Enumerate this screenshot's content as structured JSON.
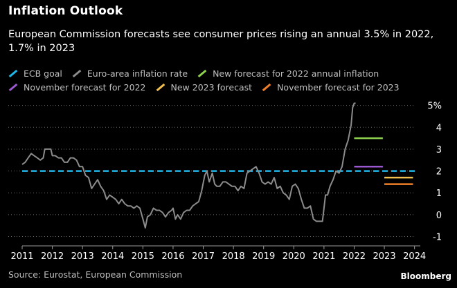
{
  "header": {
    "title": "Inflation Outlook",
    "subtitle": "European Commission forecasts see consumer prices rising an annual 3.5% in 2022, 1.7% in 2023"
  },
  "legend": [
    {
      "label": "ECB goal",
      "color": "#1fb6e8"
    },
    {
      "label": "Euro-area inflation rate",
      "color": "#8c8c8c"
    },
    {
      "label": "New forecast for 2022 annual inflation",
      "color": "#8ed14f"
    },
    {
      "label": "November forecast for 2022",
      "color": "#9b59d0"
    },
    {
      "label": "New 2023 forecast",
      "color": "#f2c14e"
    },
    {
      "label": "November forecast for 2023",
      "color": "#f07f2a"
    }
  ],
  "footer": {
    "source": "Source: Eurostat, European Commission",
    "brand": "Bloomberg"
  },
  "chart_data": {
    "type": "line",
    "x_ticks": [
      "2011",
      "2012",
      "2013",
      "2014",
      "2015",
      "2016",
      "2017",
      "2018",
      "2019",
      "2020",
      "2021",
      "2022",
      "2023",
      "2024"
    ],
    "y_ticks": [
      "-1",
      "0",
      "1",
      "2",
      "3",
      "4",
      "5%"
    ],
    "xlim": [
      2011,
      2024.1
    ],
    "ylim": [
      -1.3,
      5.4
    ],
    "grid": "horizontal dotted",
    "series": [
      {
        "name": "Euro-area inflation rate",
        "color": "#8c8c8c",
        "points": [
          [
            2011.0,
            2.3
          ],
          [
            2011.1,
            2.4
          ],
          [
            2011.2,
            2.6
          ],
          [
            2011.3,
            2.8
          ],
          [
            2011.4,
            2.7
          ],
          [
            2011.5,
            2.6
          ],
          [
            2011.6,
            2.5
          ],
          [
            2011.7,
            2.6
          ],
          [
            2011.75,
            3.0
          ],
          [
            2011.85,
            3.0
          ],
          [
            2011.95,
            3.0
          ],
          [
            2012.0,
            2.7
          ],
          [
            2012.1,
            2.7
          ],
          [
            2012.2,
            2.6
          ],
          [
            2012.3,
            2.6
          ],
          [
            2012.4,
            2.4
          ],
          [
            2012.5,
            2.4
          ],
          [
            2012.6,
            2.6
          ],
          [
            2012.7,
            2.6
          ],
          [
            2012.8,
            2.5
          ],
          [
            2012.9,
            2.2
          ],
          [
            2013.0,
            2.2
          ],
          [
            2013.1,
            1.8
          ],
          [
            2013.2,
            1.7
          ],
          [
            2013.3,
            1.2
          ],
          [
            2013.4,
            1.4
          ],
          [
            2013.5,
            1.6
          ],
          [
            2013.6,
            1.3
          ],
          [
            2013.7,
            1.1
          ],
          [
            2013.8,
            0.7
          ],
          [
            2013.9,
            0.9
          ],
          [
            2014.0,
            0.8
          ],
          [
            2014.1,
            0.7
          ],
          [
            2014.2,
            0.5
          ],
          [
            2014.3,
            0.7
          ],
          [
            2014.4,
            0.5
          ],
          [
            2014.5,
            0.4
          ],
          [
            2014.6,
            0.4
          ],
          [
            2014.7,
            0.3
          ],
          [
            2014.8,
            0.4
          ],
          [
            2014.9,
            0.3
          ],
          [
            2015.0,
            -0.2
          ],
          [
            2015.08,
            -0.6
          ],
          [
            2015.15,
            -0.1
          ],
          [
            2015.25,
            0.0
          ],
          [
            2015.35,
            0.3
          ],
          [
            2015.45,
            0.2
          ],
          [
            2015.55,
            0.2
          ],
          [
            2015.65,
            0.1
          ],
          [
            2015.75,
            -0.1
          ],
          [
            2015.85,
            0.1
          ],
          [
            2015.95,
            0.2
          ],
          [
            2016.0,
            0.3
          ],
          [
            2016.08,
            -0.2
          ],
          [
            2016.15,
            0.0
          ],
          [
            2016.25,
            -0.2
          ],
          [
            2016.35,
            0.1
          ],
          [
            2016.45,
            0.2
          ],
          [
            2016.55,
            0.2
          ],
          [
            2016.65,
            0.4
          ],
          [
            2016.75,
            0.5
          ],
          [
            2016.85,
            0.6
          ],
          [
            2016.95,
            1.1
          ],
          [
            2017.05,
            1.8
          ],
          [
            2017.12,
            2.0
          ],
          [
            2017.2,
            1.5
          ],
          [
            2017.3,
            1.9
          ],
          [
            2017.38,
            1.4
          ],
          [
            2017.45,
            1.3
          ],
          [
            2017.55,
            1.3
          ],
          [
            2017.65,
            1.5
          ],
          [
            2017.75,
            1.5
          ],
          [
            2017.85,
            1.4
          ],
          [
            2017.95,
            1.3
          ],
          [
            2018.05,
            1.3
          ],
          [
            2018.15,
            1.1
          ],
          [
            2018.25,
            1.3
          ],
          [
            2018.35,
            1.2
          ],
          [
            2018.45,
            1.9
          ],
          [
            2018.55,
            2.0
          ],
          [
            2018.65,
            2.1
          ],
          [
            2018.75,
            2.2
          ],
          [
            2018.85,
            1.9
          ],
          [
            2018.95,
            1.5
          ],
          [
            2019.05,
            1.4
          ],
          [
            2019.15,
            1.5
          ],
          [
            2019.25,
            1.4
          ],
          [
            2019.35,
            1.7
          ],
          [
            2019.45,
            1.2
          ],
          [
            2019.55,
            1.3
          ],
          [
            2019.65,
            1.0
          ],
          [
            2019.75,
            0.9
          ],
          [
            2019.85,
            0.7
          ],
          [
            2019.95,
            1.3
          ],
          [
            2020.05,
            1.4
          ],
          [
            2020.15,
            1.2
          ],
          [
            2020.25,
            0.7
          ],
          [
            2020.35,
            0.3
          ],
          [
            2020.45,
            0.3
          ],
          [
            2020.55,
            0.4
          ],
          [
            2020.65,
            -0.2
          ],
          [
            2020.75,
            -0.3
          ],
          [
            2020.85,
            -0.3
          ],
          [
            2020.95,
            -0.3
          ],
          [
            2021.05,
            0.9
          ],
          [
            2021.12,
            0.9
          ],
          [
            2021.2,
            1.3
          ],
          [
            2021.3,
            1.6
          ],
          [
            2021.4,
            2.0
          ],
          [
            2021.5,
            1.9
          ],
          [
            2021.6,
            2.2
          ],
          [
            2021.7,
            3.0
          ],
          [
            2021.8,
            3.4
          ],
          [
            2021.9,
            4.1
          ],
          [
            2021.95,
            4.9
          ],
          [
            2022.0,
            5.1
          ],
          [
            2022.05,
            5.1
          ]
        ]
      }
    ],
    "reference_lines": [
      {
        "name": "ECB goal",
        "y": 2.0,
        "color": "#1fb6e8",
        "style": "dashed"
      }
    ],
    "forecasts": [
      {
        "name": "New forecast for 2022 annual inflation",
        "x": [
          2022.0,
          2022.95
        ],
        "y": 3.5,
        "color": "#8ed14f"
      },
      {
        "name": "November forecast for 2022",
        "x": [
          2022.0,
          2022.95
        ],
        "y": 2.2,
        "color": "#9b59d0"
      },
      {
        "name": "New 2023 forecast",
        "x": [
          2023.0,
          2023.95
        ],
        "y": 1.7,
        "color": "#f2c14e"
      },
      {
        "name": "November forecast for 2023",
        "x": [
          2023.0,
          2023.95
        ],
        "y": 1.4,
        "color": "#f07f2a"
      }
    ]
  }
}
